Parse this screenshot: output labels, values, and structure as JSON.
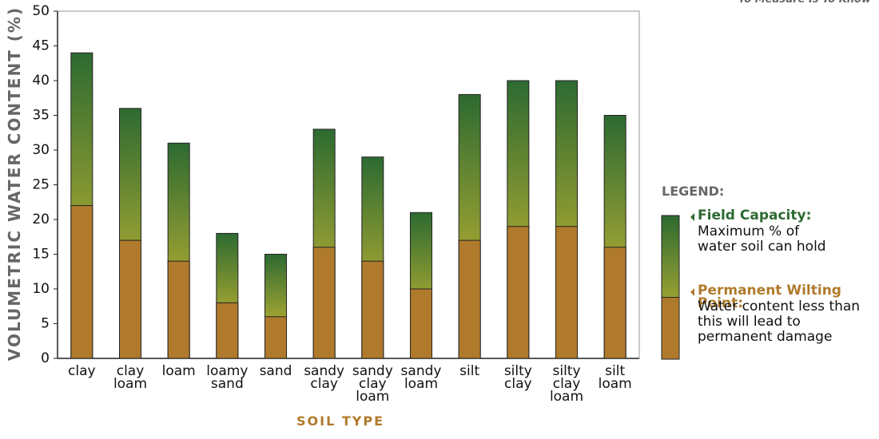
{
  "chart_data": {
    "type": "bar",
    "tagline": "To Measure Is To Know",
    "x_label": "SOIL TYPE",
    "y_label": "VOLUMETRIC WATER CONTENT (%)",
    "categories": [
      "clay",
      "clay\nloam",
      "loam",
      "loamy\nsand",
      "sand",
      "sandy\nclay",
      "sandy\nclay\nloam",
      "sandy\nloam",
      "silt",
      "silty\nclay",
      "silty\nclay\nloam",
      "silt\nloam"
    ],
    "series": [
      {
        "name": "Field Capacity:",
        "description": "Maximum % of\nwater soil can hold",
        "color": [
          "#2d6a31",
          "#e8c832"
        ],
        "values": [
          44,
          36,
          31,
          18,
          15,
          33,
          29,
          21,
          38,
          40,
          40,
          35
        ]
      },
      {
        "name": "Permanent Wilting Point:",
        "description": "Water content less than\nthis will lead to\npermanent damage",
        "color": "#b07a2c",
        "values": [
          22,
          17,
          14,
          8,
          6,
          16,
          14,
          10,
          17,
          19,
          19,
          16
        ]
      }
    ],
    "overlay": true,
    "legend_title": "LEGEND:",
    "ylim": [
      0,
      50
    ],
    "yticks": [
      0,
      5,
      10,
      15,
      20,
      25,
      30,
      35,
      40,
      45,
      50
    ],
    "grid": false
  }
}
